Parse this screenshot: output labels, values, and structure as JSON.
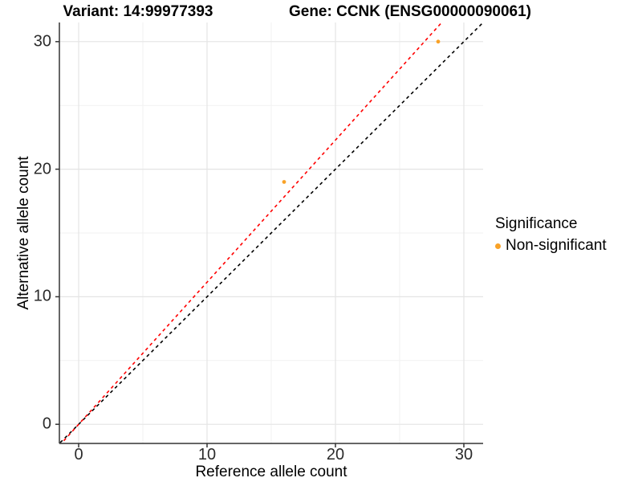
{
  "titles": {
    "variant": "Variant: 14:99977393",
    "gene": "Gene: CCNK (ENSG00000090061)"
  },
  "chart_data": {
    "type": "scatter",
    "xlabel": "Reference allele count",
    "ylabel": "Alternative allele count",
    "xlim": [
      -1.5,
      31.5
    ],
    "ylim": [
      -1.5,
      31.5
    ],
    "xticks": [
      0,
      10,
      20,
      30
    ],
    "yticks": [
      0,
      10,
      20,
      30
    ],
    "xticks_minor": [
      5,
      15,
      25
    ],
    "yticks_minor": [
      5,
      15,
      25
    ],
    "grid": "major+minor",
    "points": [
      {
        "x": 16,
        "y": 19,
        "significance": "Non-significant"
      },
      {
        "x": 28,
        "y": 30,
        "significance": "Non-significant"
      }
    ],
    "lines": [
      {
        "id": "identity-line",
        "slope": 1.0,
        "intercept": 0,
        "color": "#000000",
        "dashed": true
      },
      {
        "id": "ratio-line",
        "slope": 1.114,
        "intercept": 0,
        "color": "#FF0000",
        "dashed": true
      }
    ],
    "point_color": "#F9A227",
    "legend": {
      "title": "Significance",
      "position": "right",
      "entries": [
        {
          "label": "Non-significant",
          "color": "#F9A227"
        }
      ]
    },
    "style": {
      "grid_major_color": "#E4E4E4",
      "grid_minor_color": "#F1F1F1",
      "axis_color": "#333333",
      "panel_background": "#FFFFFF"
    }
  }
}
